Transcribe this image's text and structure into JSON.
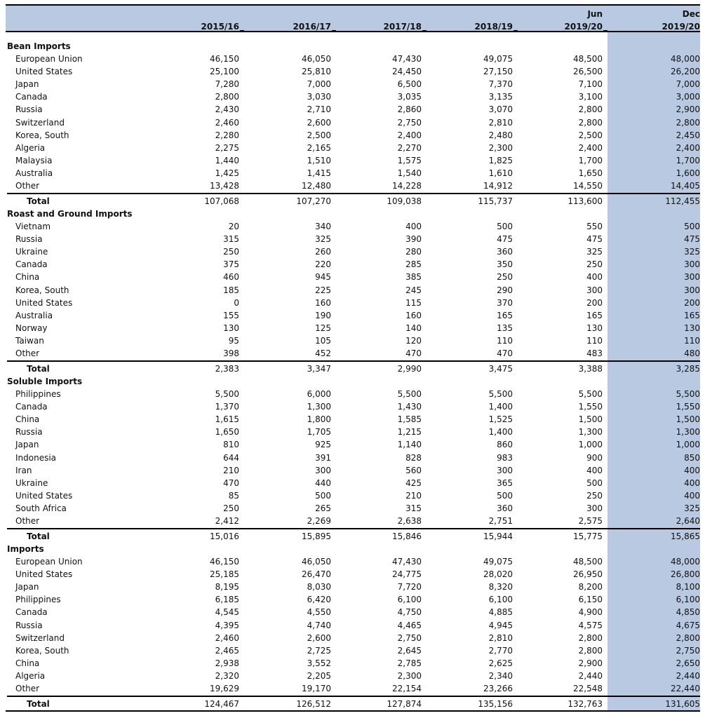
{
  "header": {
    "columns": [
      {
        "label": "2015/16"
      },
      {
        "label": "2016/17"
      },
      {
        "label": "2017/18"
      },
      {
        "label": "2018/19"
      },
      {
        "top": "Jun",
        "label": "2019/20"
      },
      {
        "top": "Dec",
        "label": "2019/20"
      }
    ]
  },
  "sections": [
    {
      "title": "Bean Imports",
      "rows": [
        {
          "label": "European Union",
          "values": [
            "46,150",
            "46,050",
            "47,430",
            "49,075",
            "48,500",
            "48,000"
          ]
        },
        {
          "label": "United States",
          "values": [
            "25,100",
            "25,810",
            "24,450",
            "27,150",
            "26,500",
            "26,200"
          ]
        },
        {
          "label": "Japan",
          "values": [
            "7,280",
            "7,000",
            "6,500",
            "7,370",
            "7,100",
            "7,000"
          ]
        },
        {
          "label": "Canada",
          "values": [
            "2,800",
            "3,030",
            "3,035",
            "3,135",
            "3,100",
            "3,000"
          ]
        },
        {
          "label": "Russia",
          "values": [
            "2,430",
            "2,710",
            "2,860",
            "3,070",
            "2,800",
            "2,900"
          ]
        },
        {
          "label": "Switzerland",
          "values": [
            "2,460",
            "2,600",
            "2,750",
            "2,810",
            "2,800",
            "2,800"
          ]
        },
        {
          "label": "Korea, South",
          "values": [
            "2,280",
            "2,500",
            "2,400",
            "2,480",
            "2,500",
            "2,450"
          ]
        },
        {
          "label": "Algeria",
          "values": [
            "2,275",
            "2,165",
            "2,270",
            "2,300",
            "2,400",
            "2,400"
          ]
        },
        {
          "label": "Malaysia",
          "values": [
            "1,440",
            "1,510",
            "1,575",
            "1,825",
            "1,700",
            "1,700"
          ]
        },
        {
          "label": "Australia",
          "values": [
            "1,425",
            "1,415",
            "1,540",
            "1,610",
            "1,650",
            "1,600"
          ]
        },
        {
          "label": "Other",
          "values": [
            "13,428",
            "12,480",
            "14,228",
            "14,912",
            "14,550",
            "14,405"
          ]
        }
      ],
      "total": {
        "label": "Total",
        "values": [
          "107,068",
          "107,270",
          "109,038",
          "115,737",
          "113,600",
          "112,455"
        ]
      }
    },
    {
      "title": "Roast and Ground Imports",
      "rows": [
        {
          "label": "Vietnam",
          "values": [
            "20",
            "340",
            "400",
            "500",
            "550",
            "500"
          ]
        },
        {
          "label": "Russia",
          "values": [
            "315",
            "325",
            "390",
            "475",
            "475",
            "475"
          ]
        },
        {
          "label": "Ukraine",
          "values": [
            "250",
            "260",
            "280",
            "360",
            "325",
            "325"
          ]
        },
        {
          "label": "Canada",
          "values": [
            "375",
            "220",
            "285",
            "350",
            "250",
            "300"
          ]
        },
        {
          "label": "China",
          "values": [
            "460",
            "945",
            "385",
            "250",
            "400",
            "300"
          ]
        },
        {
          "label": "Korea, South",
          "values": [
            "185",
            "225",
            "245",
            "290",
            "300",
            "300"
          ]
        },
        {
          "label": "United States",
          "values": [
            "0",
            "160",
            "115",
            "370",
            "200",
            "200"
          ]
        },
        {
          "label": "Australia",
          "values": [
            "155",
            "190",
            "160",
            "165",
            "165",
            "165"
          ]
        },
        {
          "label": "Norway",
          "values": [
            "130",
            "125",
            "140",
            "135",
            "130",
            "130"
          ]
        },
        {
          "label": "Taiwan",
          "values": [
            "95",
            "105",
            "120",
            "110",
            "110",
            "110"
          ]
        },
        {
          "label": "Other",
          "values": [
            "398",
            "452",
            "470",
            "470",
            "483",
            "480"
          ]
        }
      ],
      "total": {
        "label": "Total",
        "values": [
          "2,383",
          "3,347",
          "2,990",
          "3,475",
          "3,388",
          "3,285"
        ]
      }
    },
    {
      "title": "Soluble Imports",
      "rows": [
        {
          "label": "Philippines",
          "values": [
            "5,500",
            "6,000",
            "5,500",
            "5,500",
            "5,500",
            "5,500"
          ]
        },
        {
          "label": "Canada",
          "values": [
            "1,370",
            "1,300",
            "1,430",
            "1,400",
            "1,550",
            "1,550"
          ]
        },
        {
          "label": "China",
          "values": [
            "1,615",
            "1,800",
            "1,585",
            "1,525",
            "1,500",
            "1,500"
          ]
        },
        {
          "label": "Russia",
          "values": [
            "1,650",
            "1,705",
            "1,215",
            "1,400",
            "1,300",
            "1,300"
          ]
        },
        {
          "label": "Japan",
          "values": [
            "810",
            "925",
            "1,140",
            "860",
            "1,000",
            "1,000"
          ]
        },
        {
          "label": "Indonesia",
          "values": [
            "644",
            "391",
            "828",
            "983",
            "900",
            "850"
          ]
        },
        {
          "label": "Iran",
          "values": [
            "210",
            "300",
            "560",
            "300",
            "400",
            "400"
          ]
        },
        {
          "label": "Ukraine",
          "values": [
            "470",
            "440",
            "425",
            "365",
            "500",
            "400"
          ]
        },
        {
          "label": "United States",
          "values": [
            "85",
            "500",
            "210",
            "500",
            "250",
            "400"
          ]
        },
        {
          "label": "South Africa",
          "values": [
            "250",
            "265",
            "315",
            "360",
            "300",
            "325"
          ]
        },
        {
          "label": "Other",
          "values": [
            "2,412",
            "2,269",
            "2,638",
            "2,751",
            "2,575",
            "2,640"
          ]
        }
      ],
      "total": {
        "label": "Total",
        "values": [
          "15,016",
          "15,895",
          "15,846",
          "15,944",
          "15,775",
          "15,865"
        ]
      }
    },
    {
      "title": "Imports",
      "rows": [
        {
          "label": "European Union",
          "values": [
            "46,150",
            "46,050",
            "47,430",
            "49,075",
            "48,500",
            "48,000"
          ]
        },
        {
          "label": "United States",
          "values": [
            "25,185",
            "26,470",
            "24,775",
            "28,020",
            "26,950",
            "26,800"
          ]
        },
        {
          "label": "Japan",
          "values": [
            "8,195",
            "8,030",
            "7,720",
            "8,320",
            "8,200",
            "8,100"
          ]
        },
        {
          "label": "Philippines",
          "values": [
            "6,185",
            "6,420",
            "6,100",
            "6,100",
            "6,150",
            "6,100"
          ]
        },
        {
          "label": "Canada",
          "values": [
            "4,545",
            "4,550",
            "4,750",
            "4,885",
            "4,900",
            "4,850"
          ]
        },
        {
          "label": "Russia",
          "values": [
            "4,395",
            "4,740",
            "4,465",
            "4,945",
            "4,575",
            "4,675"
          ]
        },
        {
          "label": "Switzerland",
          "values": [
            "2,460",
            "2,600",
            "2,750",
            "2,810",
            "2,800",
            "2,800"
          ]
        },
        {
          "label": "Korea, South",
          "values": [
            "2,465",
            "2,725",
            "2,645",
            "2,770",
            "2,800",
            "2,750"
          ]
        },
        {
          "label": "China",
          "values": [
            "2,938",
            "3,552",
            "2,785",
            "2,625",
            "2,900",
            "2,650"
          ]
        },
        {
          "label": "Algeria",
          "values": [
            "2,320",
            "2,205",
            "2,300",
            "2,340",
            "2,440",
            "2,440"
          ]
        },
        {
          "label": "Other",
          "values": [
            "19,629",
            "19,170",
            "22,154",
            "23,266",
            "22,548",
            "22,440"
          ]
        }
      ],
      "total": {
        "label": "Total",
        "values": [
          "124,467",
          "126,512",
          "127,874",
          "135,156",
          "132,763",
          "131,605"
        ]
      }
    }
  ]
}
